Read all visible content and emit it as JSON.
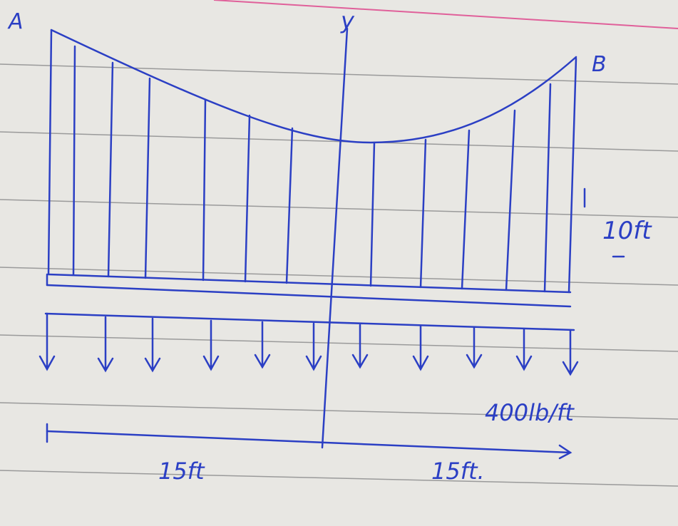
{
  "labels": {
    "point_a": "A",
    "point_b": "B",
    "axis": "y",
    "sag": "10ft",
    "load": "400lb/ft",
    "left_span": "15ft",
    "right_span": "15ft."
  }
}
